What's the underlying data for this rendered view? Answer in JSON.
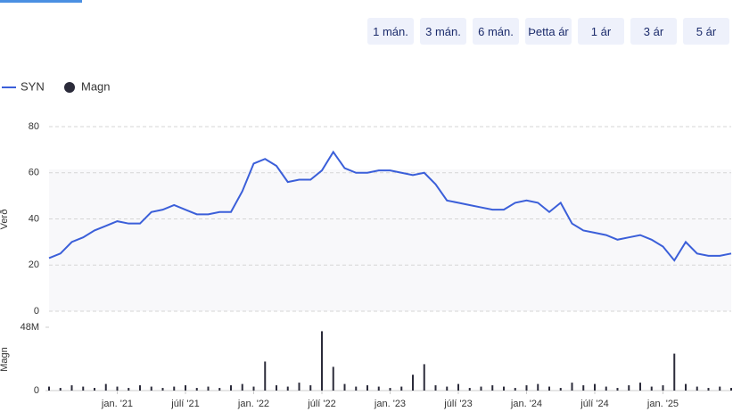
{
  "range_buttons": [
    "1 mán.",
    "3 mán.",
    "6 mán.",
    "Þetta ár",
    "1 ár",
    "3 ár",
    "5 ár"
  ],
  "chart_data": {
    "type": "line",
    "categories": [
      null,
      null,
      null,
      null,
      null,
      null,
      "jan. '21",
      null,
      null,
      null,
      null,
      null,
      "júlí '21",
      null,
      null,
      null,
      null,
      null,
      "jan. '22",
      null,
      null,
      null,
      null,
      null,
      "júlí '22",
      null,
      null,
      null,
      null,
      null,
      "jan. '23",
      null,
      null,
      null,
      null,
      null,
      "júlí '23",
      null,
      null,
      null,
      null,
      null,
      "jan. '24",
      null,
      null,
      null,
      null,
      null,
      "júlí '24",
      null,
      null,
      null,
      null,
      null,
      "jan. '25",
      null,
      null,
      null,
      null,
      null,
      null
    ],
    "ylabel": "Verð",
    "y2label": "Magn",
    "ylim": [
      0,
      80
    ],
    "yticks": [
      0,
      20,
      40,
      60,
      80
    ],
    "y2lim": [
      0,
      48
    ],
    "y2ticks": [
      0,
      {
        "value": 48,
        "label": "48M"
      }
    ],
    "grid": true,
    "legend": "top-left",
    "series": [
      {
        "name": "SYN",
        "color": "#3b5fd9",
        "values": [
          23,
          25,
          30,
          32,
          35,
          37,
          39,
          38,
          38,
          43,
          44,
          46,
          44,
          42,
          42,
          43,
          43,
          52,
          64,
          66,
          63,
          56,
          57,
          57,
          61,
          69,
          62,
          60,
          60,
          61,
          61,
          60,
          59,
          60,
          55,
          48,
          47,
          46,
          45,
          44,
          44,
          47,
          48,
          47,
          43,
          47,
          38,
          35,
          34,
          33,
          31,
          32,
          33,
          31,
          28,
          22,
          30,
          25,
          24,
          24,
          25
        ]
      },
      {
        "name": "Magn",
        "type": "bar",
        "axis": "y2",
        "color": "#2b2b3a",
        "values": [
          3,
          2,
          4,
          3,
          2,
          5,
          3,
          2,
          4,
          3,
          2,
          3,
          4,
          2,
          3,
          2,
          4,
          5,
          3,
          22,
          4,
          3,
          6,
          4,
          45,
          18,
          5,
          3,
          4,
          3,
          2,
          3,
          12,
          20,
          4,
          3,
          5,
          2,
          3,
          4,
          3,
          2,
          4,
          5,
          3,
          2,
          6,
          4,
          5,
          3,
          2,
          4,
          6,
          3,
          4,
          28,
          5,
          3,
          2,
          3,
          2
        ]
      }
    ]
  }
}
